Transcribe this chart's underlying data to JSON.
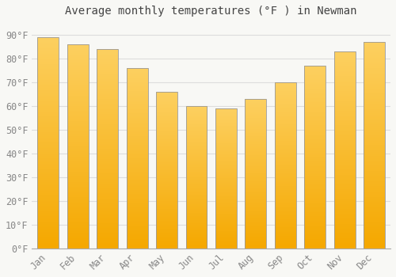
{
  "title": "Average monthly temperatures (°F ) in Newman",
  "months": [
    "Jan",
    "Feb",
    "Mar",
    "Apr",
    "May",
    "Jun",
    "Jul",
    "Aug",
    "Sep",
    "Oct",
    "Nov",
    "Dec"
  ],
  "values": [
    89,
    86,
    84,
    76,
    66,
    60,
    59,
    63,
    70,
    77,
    83,
    87
  ],
  "bar_color_dark": "#F5A800",
  "bar_color_light": "#FDD060",
  "bar_edge_color": "#999999",
  "ylim": [
    0,
    95
  ],
  "yticks": [
    0,
    10,
    20,
    30,
    40,
    50,
    60,
    70,
    80,
    90
  ],
  "ytick_labels": [
    "0°F",
    "10°F",
    "20°F",
    "30°F",
    "40°F",
    "50°F",
    "60°F",
    "70°F",
    "80°F",
    "90°F"
  ],
  "background_color": "#f8f8f5",
  "grid_color": "#dddddd",
  "title_fontsize": 10,
  "tick_fontsize": 8.5,
  "bar_width": 0.72
}
